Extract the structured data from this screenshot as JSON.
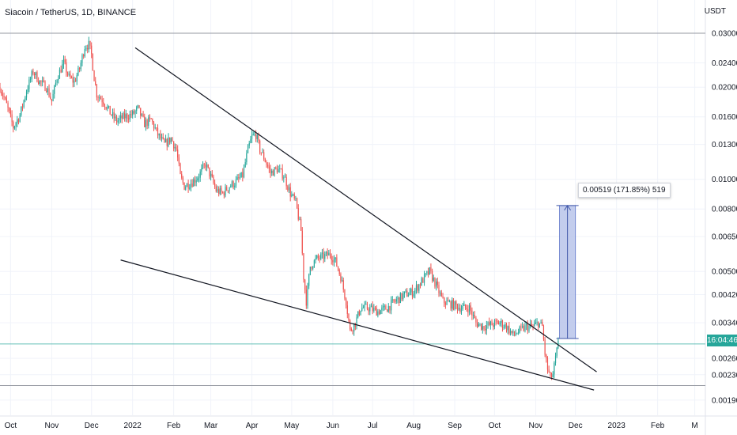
{
  "header": {
    "title": "Siacoin / TetherUS, 1D, BINANCE",
    "unit": "USDT"
  },
  "current_price": {
    "label": "16:04:46",
    "value": 0.0029,
    "color": "#26a69a"
  },
  "measure": {
    "label": "0.00519 (171.85%) 519",
    "from_price": 0.00302,
    "to_price": 0.00821,
    "start_date": "2022-11-19",
    "end_date": "2022-12-01"
  },
  "colors": {
    "up": "#26a69a",
    "down": "#ef5350",
    "trendline": "#131722",
    "measure_fill": "#b8c4ea",
    "measure_stroke": "#5b74c9",
    "hline": "#9598a1"
  },
  "chart_data": {
    "type": "candlestick",
    "scale": "log",
    "ylim": [
      0.0018,
      0.033
    ],
    "xlim": [
      "2021-09-23",
      "2023-03-09"
    ],
    "yticks": [
      "0.03000",
      "0.02400",
      "0.02000",
      "0.01600",
      "0.01300",
      "0.01000",
      "0.00800",
      "0.00650",
      "0.00500",
      "0.00420",
      "0.00340",
      "0.00260",
      "0.00230",
      "0.00190"
    ],
    "xticks": [
      {
        "label": "Oct",
        "date": "2021-10-01"
      },
      {
        "label": "Nov",
        "date": "2021-11-01"
      },
      {
        "label": "Dec",
        "date": "2021-12-01"
      },
      {
        "label": "2022",
        "date": "2022-01-01"
      },
      {
        "label": "Feb",
        "date": "2022-02-01"
      },
      {
        "label": "Mar",
        "date": "2022-03-01"
      },
      {
        "label": "Apr",
        "date": "2022-04-01"
      },
      {
        "label": "May",
        "date": "2022-05-01"
      },
      {
        "label": "Jun",
        "date": "2022-06-01"
      },
      {
        "label": "Jul",
        "date": "2022-07-01"
      },
      {
        "label": "Aug",
        "date": "2022-08-01"
      },
      {
        "label": "Sep",
        "date": "2022-09-01"
      },
      {
        "label": "Oct",
        "date": "2022-10-01"
      },
      {
        "label": "Nov",
        "date": "2022-11-01"
      },
      {
        "label": "Dec",
        "date": "2022-12-01"
      },
      {
        "label": "2023",
        "date": "2023-01-01"
      },
      {
        "label": "Feb",
        "date": "2023-02-01"
      },
      {
        "label": "M",
        "date": "2023-03-01"
      }
    ],
    "close_path": [
      [
        "2021-09-23",
        0.02
      ],
      [
        "2021-09-28",
        0.0175
      ],
      [
        "2021-10-03",
        0.0148
      ],
      [
        "2021-10-08",
        0.0162
      ],
      [
        "2021-10-13",
        0.0195
      ],
      [
        "2021-10-18",
        0.0225
      ],
      [
        "2021-10-23",
        0.0208
      ],
      [
        "2021-10-28",
        0.02
      ],
      [
        "2021-11-01",
        0.018
      ],
      [
        "2021-11-05",
        0.0215
      ],
      [
        "2021-11-10",
        0.024
      ],
      [
        "2021-11-14",
        0.0215
      ],
      [
        "2021-11-18",
        0.0208
      ],
      [
        "2021-11-22",
        0.023
      ],
      [
        "2021-11-26",
        0.0272
      ],
      [
        "2021-11-29",
        0.0275
      ],
      [
        "2021-12-01",
        0.0255
      ],
      [
        "2021-12-03",
        0.0215
      ],
      [
        "2021-12-05",
        0.019
      ],
      [
        "2021-12-10",
        0.018
      ],
      [
        "2021-12-15",
        0.0165
      ],
      [
        "2021-12-20",
        0.0155
      ],
      [
        "2021-12-26",
        0.016
      ],
      [
        "2022-01-01",
        0.0163
      ],
      [
        "2022-01-05",
        0.017
      ],
      [
        "2022-01-10",
        0.0152
      ],
      [
        "2022-01-15",
        0.0156
      ],
      [
        "2022-01-20",
        0.014
      ],
      [
        "2022-01-25",
        0.013
      ],
      [
        "2022-01-30",
        0.0136
      ],
      [
        "2022-02-03",
        0.0125
      ],
      [
        "2022-02-06",
        0.0102
      ],
      [
        "2022-02-09",
        0.0095
      ],
      [
        "2022-02-15",
        0.0098
      ],
      [
        "2022-02-20",
        0.0103
      ],
      [
        "2022-02-25",
        0.0112
      ],
      [
        "2022-03-01",
        0.0102
      ],
      [
        "2022-03-05",
        0.0092
      ],
      [
        "2022-03-10",
        0.009
      ],
      [
        "2022-03-15",
        0.0095
      ],
      [
        "2022-03-20",
        0.0098
      ],
      [
        "2022-03-25",
        0.0103
      ],
      [
        "2022-03-29",
        0.0125
      ],
      [
        "2022-04-01",
        0.0138
      ],
      [
        "2022-04-04",
        0.014
      ],
      [
        "2022-04-07",
        0.0125
      ],
      [
        "2022-04-10",
        0.0118
      ],
      [
        "2022-04-15",
        0.0105
      ],
      [
        "2022-04-20",
        0.0108
      ],
      [
        "2022-04-25",
        0.0103
      ],
      [
        "2022-04-30",
        0.009
      ],
      [
        "2022-05-04",
        0.0084
      ],
      [
        "2022-05-08",
        0.0068
      ],
      [
        "2022-05-10",
        0.0048
      ],
      [
        "2022-05-12",
        0.004
      ],
      [
        "2022-05-15",
        0.0052
      ],
      [
        "2022-05-20",
        0.0055
      ],
      [
        "2022-05-25",
        0.0056
      ],
      [
        "2022-05-30",
        0.0057
      ],
      [
        "2022-06-03",
        0.0054
      ],
      [
        "2022-06-07",
        0.0048
      ],
      [
        "2022-06-11",
        0.004
      ],
      [
        "2022-06-14",
        0.0032
      ],
      [
        "2022-06-18",
        0.0034
      ],
      [
        "2022-06-22",
        0.0038
      ],
      [
        "2022-06-28",
        0.0038
      ],
      [
        "2022-07-05",
        0.0037
      ],
      [
        "2022-07-12",
        0.0038
      ],
      [
        "2022-07-18",
        0.004
      ],
      [
        "2022-07-25",
        0.0042
      ],
      [
        "2022-08-01",
        0.0043
      ],
      [
        "2022-08-08",
        0.0047
      ],
      [
        "2022-08-13",
        0.005
      ],
      [
        "2022-08-18",
        0.0045
      ],
      [
        "2022-08-23",
        0.004
      ],
      [
        "2022-08-30",
        0.0039
      ],
      [
        "2022-09-06",
        0.0038
      ],
      [
        "2022-09-12",
        0.0038
      ],
      [
        "2022-09-17",
        0.0034
      ],
      [
        "2022-09-22",
        0.0033
      ],
      [
        "2022-09-28",
        0.00335
      ],
      [
        "2022-10-05",
        0.0034
      ],
      [
        "2022-10-10",
        0.0033
      ],
      [
        "2022-10-15",
        0.0031
      ],
      [
        "2022-10-20",
        0.0032
      ],
      [
        "2022-10-25",
        0.0033
      ],
      [
        "2022-10-30",
        0.0033
      ],
      [
        "2022-11-03",
        0.0034
      ],
      [
        "2022-11-06",
        0.0033
      ],
      [
        "2022-11-08",
        0.0027
      ],
      [
        "2022-11-10",
        0.0024
      ],
      [
        "2022-11-12",
        0.00225
      ],
      [
        "2022-11-14",
        0.0023
      ],
      [
        "2022-11-16",
        0.0026
      ],
      [
        "2022-11-18",
        0.0029
      ]
    ]
  }
}
